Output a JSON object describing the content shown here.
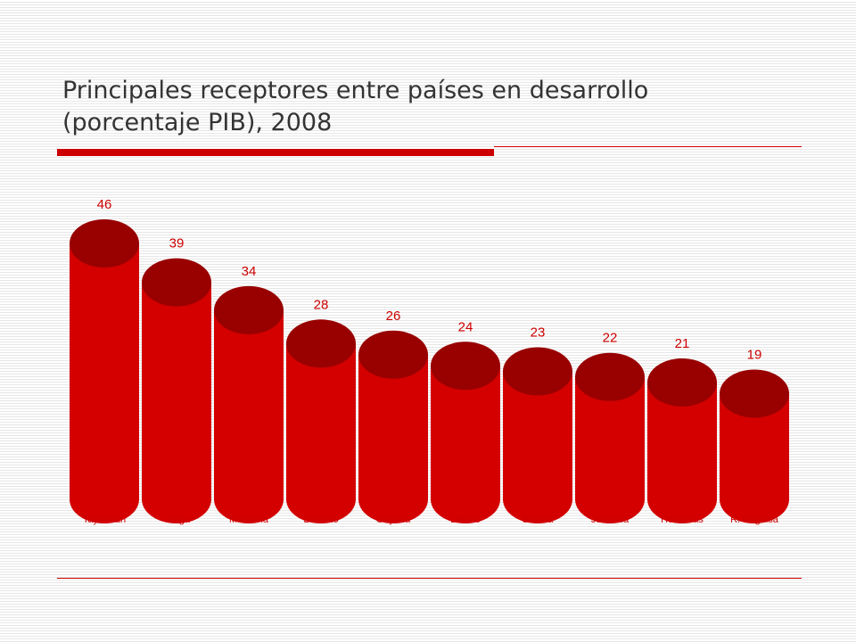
{
  "slide": {
    "title_line1": "Principales receptores entre países en desarrollo",
    "title_line2": "(porcentaje PIB), 2008"
  },
  "colors": {
    "accent": "#cc0000",
    "bar_body": "#d40000",
    "bar_top": "#990000",
    "label_text": "#cc0000",
    "title_text": "#333333"
  },
  "chart_data": {
    "type": "bar",
    "style": "3d-cylinder",
    "categories": [
      "Tayikistán",
      "Tonga",
      "Moldavia",
      "Lesotho",
      "Guyana",
      "Líbano",
      "Samoa",
      "Jordania",
      "Honduras",
      "R. Kirguisa"
    ],
    "values": [
      46,
      39,
      34,
      28,
      26,
      24,
      23,
      22,
      21,
      19
    ],
    "data_labels": [
      "46",
      "39",
      "34",
      "28",
      "26",
      "24",
      "23",
      "22",
      "21",
      "19"
    ],
    "title": "Principales receptores entre países en desarrollo (porcentaje PIB), 2008",
    "xlabel": "",
    "ylabel": "",
    "ylim": [
      0,
      50
    ],
    "grid": false,
    "legend": "none"
  }
}
